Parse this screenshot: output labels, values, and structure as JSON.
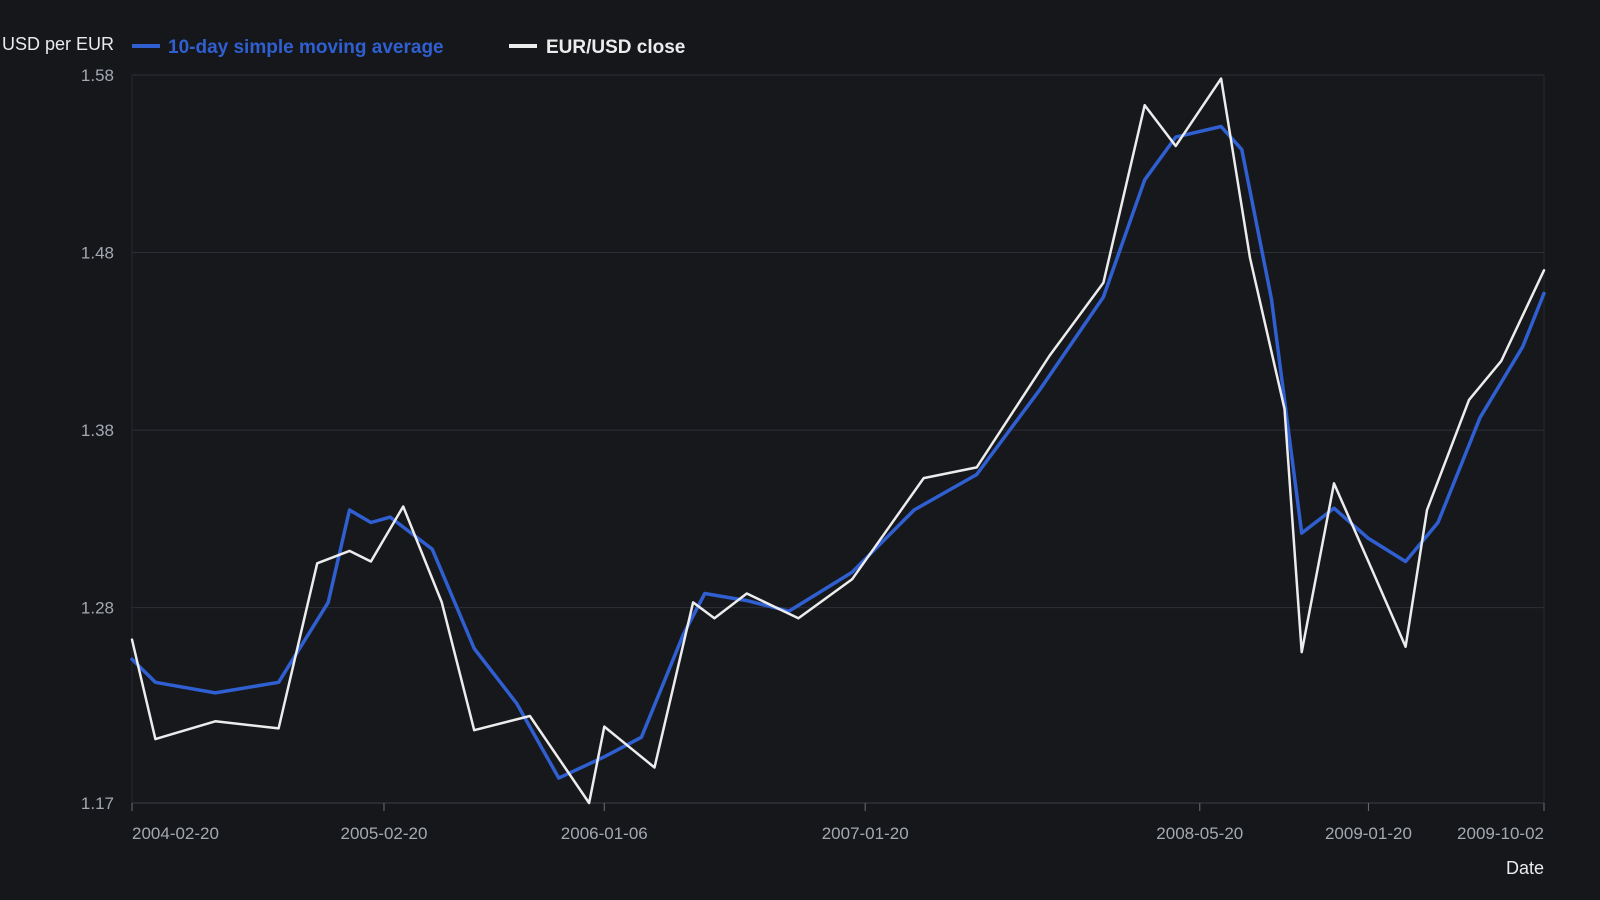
{
  "chart_data": {
    "type": "line",
    "title": "",
    "xlabel": "Date",
    "ylabel": "USD per EUR",
    "ylim": [
      1.17,
      1.58
    ],
    "yticks": [
      "1.17",
      "1.28",
      "1.38",
      "1.48",
      "1.58"
    ],
    "xlim": [
      "2004-02-20",
      "2009-10-02"
    ],
    "xticks": [
      "2004-02-20",
      "2005-02-20",
      "2006-01-06",
      "2007-01-20",
      "2008-05-20",
      "2009-01-20",
      "2009-10-02"
    ],
    "grid": "horizontal",
    "legend_position": "top-left",
    "colors": {
      "background": "#15171b",
      "grid": "#2c2f35",
      "text": "#a4a8b0"
    },
    "series": [
      {
        "name": "10-day simple moving average",
        "color": "#2f5fd0",
        "points": [
          [
            "2004-02-20",
            1.251
          ],
          [
            "2004-03-25",
            1.238
          ],
          [
            "2004-06-20",
            1.232
          ],
          [
            "2004-09-20",
            1.238
          ],
          [
            "2004-12-01",
            1.283
          ],
          [
            "2005-01-01",
            1.335
          ],
          [
            "2005-02-01",
            1.328
          ],
          [
            "2005-03-01",
            1.331
          ],
          [
            "2005-05-01",
            1.313
          ],
          [
            "2005-07-01",
            1.257
          ],
          [
            "2005-09-01",
            1.226
          ],
          [
            "2005-11-01",
            1.184
          ],
          [
            "2006-01-06",
            1.196
          ],
          [
            "2006-03-01",
            1.207
          ],
          [
            "2006-05-01",
            1.265
          ],
          [
            "2006-06-01",
            1.288
          ],
          [
            "2006-08-01",
            1.284
          ],
          [
            "2006-10-01",
            1.278
          ],
          [
            "2007-01-01",
            1.3
          ],
          [
            "2007-04-01",
            1.335
          ],
          [
            "2007-07-01",
            1.355
          ],
          [
            "2007-10-01",
            1.403
          ],
          [
            "2008-01-01",
            1.455
          ],
          [
            "2008-03-01",
            1.521
          ],
          [
            "2008-04-15",
            1.545
          ],
          [
            "2008-06-20",
            1.551
          ],
          [
            "2008-07-20",
            1.538
          ],
          [
            "2008-09-01",
            1.454
          ],
          [
            "2008-10-15",
            1.322
          ],
          [
            "2008-12-01",
            1.336
          ],
          [
            "2009-01-20",
            1.319
          ],
          [
            "2009-03-15",
            1.306
          ],
          [
            "2009-05-01",
            1.328
          ],
          [
            "2009-07-01",
            1.387
          ],
          [
            "2009-09-01",
            1.427
          ],
          [
            "2009-10-02",
            1.457
          ]
        ]
      },
      {
        "name": "EUR/USD close",
        "color": "#ececec",
        "points": [
          [
            "2004-02-20",
            1.262
          ],
          [
            "2004-03-25",
            1.206
          ],
          [
            "2004-06-20",
            1.216
          ],
          [
            "2004-09-20",
            1.212
          ],
          [
            "2004-11-15",
            1.305
          ],
          [
            "2005-01-01",
            1.312
          ],
          [
            "2005-02-01",
            1.306
          ],
          [
            "2005-03-20",
            1.337
          ],
          [
            "2005-05-15",
            1.283
          ],
          [
            "2005-07-01",
            1.211
          ],
          [
            "2005-09-20",
            1.219
          ],
          [
            "2005-12-15",
            1.17
          ],
          [
            "2006-01-06",
            1.213
          ],
          [
            "2006-03-20",
            1.19
          ],
          [
            "2006-05-15",
            1.283
          ],
          [
            "2006-06-15",
            1.274
          ],
          [
            "2006-08-01",
            1.288
          ],
          [
            "2006-10-15",
            1.274
          ],
          [
            "2007-01-01",
            1.296
          ],
          [
            "2007-04-15",
            1.353
          ],
          [
            "2007-07-01",
            1.359
          ],
          [
            "2007-10-15",
            1.422
          ],
          [
            "2008-01-01",
            1.463
          ],
          [
            "2008-03-01",
            1.563
          ],
          [
            "2008-04-15",
            1.54
          ],
          [
            "2008-06-20",
            1.578
          ],
          [
            "2008-08-01",
            1.477
          ],
          [
            "2008-09-20",
            1.392
          ],
          [
            "2008-10-15",
            1.255
          ],
          [
            "2008-12-01",
            1.35
          ],
          [
            "2009-01-20",
            1.306
          ],
          [
            "2009-03-15",
            1.258
          ],
          [
            "2009-04-15",
            1.335
          ],
          [
            "2009-06-15",
            1.397
          ],
          [
            "2009-08-01",
            1.419
          ],
          [
            "2009-10-02",
            1.47
          ]
        ]
      }
    ]
  }
}
